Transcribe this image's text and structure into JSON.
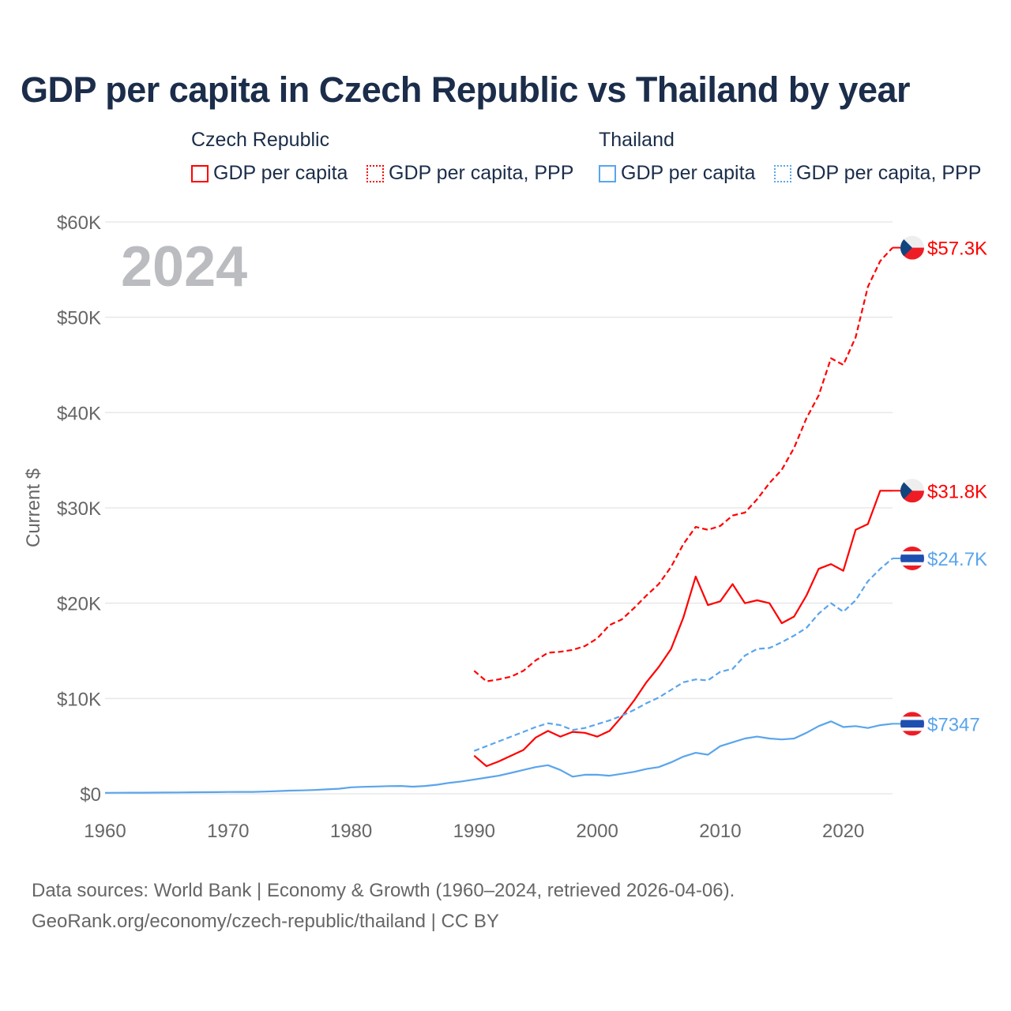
{
  "title": "GDP per capita in Czech Republic vs Thailand by year",
  "legend": {
    "groups": [
      {
        "country": "Czech Republic",
        "items": [
          "GDP per capita",
          "GDP per capita, PPP"
        ]
      },
      {
        "country": "Thailand",
        "items": [
          "GDP per capita",
          "GDP per capita, PPP"
        ]
      }
    ]
  },
  "year_watermark": "2024",
  "footer": {
    "line1": "Data sources: World Bank | Economy & Growth (1960–2024, retrieved 2026-04-06).",
    "line2": "GeoRank.org/economy/czech-republic/thailand | CC BY"
  },
  "colors": {
    "czech": "#ff0000",
    "thailand": "#5aa5ec",
    "grid": "#e8e8e8",
    "axis_text": "#666666"
  },
  "chart_data": {
    "type": "line",
    "title": "GDP per capita in Czech Republic vs Thailand by year",
    "xlabel": "",
    "ylabel": "Current $",
    "xlim": [
      1960,
      2024
    ],
    "ylim": [
      0,
      60000
    ],
    "x_ticks": [
      "1960",
      "1970",
      "1980",
      "1990",
      "2000",
      "2010",
      "2020"
    ],
    "y_ticks": [
      "$0",
      "$10K",
      "$20K",
      "$30K",
      "$40K",
      "$50K",
      "$60K"
    ],
    "grid": true,
    "legend_position": "top",
    "series": [
      {
        "name": "Czech Republic – GDP per capita",
        "country": "czech",
        "dashed": false,
        "start": 1990,
        "end_label": "$31.8K",
        "values": [
          4000,
          2900,
          3400,
          4000,
          4600,
          5900,
          6600,
          6000,
          6500,
          6400,
          6000,
          6600,
          8100,
          9800,
          11700,
          13300,
          15200,
          18500,
          22800,
          19800,
          20200,
          22000,
          20000,
          20300,
          20000,
          17900,
          18600,
          20800,
          23600,
          24100,
          23400,
          27700,
          28300,
          31800,
          31800
        ]
      },
      {
        "name": "Czech Republic – GDP per capita, PPP",
        "country": "czech",
        "dashed": true,
        "start": 1990,
        "end_label": "$57.3K",
        "values": [
          12900,
          11800,
          12000,
          12300,
          12900,
          14000,
          14800,
          14900,
          15100,
          15500,
          16300,
          17700,
          18300,
          19500,
          20800,
          22000,
          23800,
          26200,
          28000,
          27700,
          28100,
          29200,
          29500,
          30900,
          32600,
          34000,
          36300,
          39400,
          41800,
          45700,
          45000,
          47900,
          53200,
          55900,
          57300
        ]
      },
      {
        "name": "Thailand – GDP per capita",
        "country": "thailand",
        "dashed": false,
        "start": 1960,
        "end_label": "$7347",
        "values": [
          100,
          110,
          115,
          120,
          125,
          135,
          145,
          155,
          165,
          175,
          190,
          195,
          200,
          230,
          280,
          330,
          360,
          400,
          460,
          530,
          680,
          730,
          760,
          800,
          820,
          750,
          820,
          950,
          1150,
          1300,
          1500,
          1700,
          1900,
          2200,
          2500,
          2800,
          3000,
          2500,
          1800,
          2000,
          2000,
          1900,
          2100,
          2300,
          2600,
          2800,
          3300,
          3900,
          4300,
          4100,
          5000,
          5400,
          5800,
          6000,
          5800,
          5700,
          5800,
          6400,
          7100,
          7600,
          7000,
          7100,
          6900,
          7200,
          7347
        ]
      },
      {
        "name": "Thailand – GDP per capita, PPP",
        "country": "thailand",
        "dashed": true,
        "start": 1990,
        "end_label": "$24.7K",
        "values": [
          4500,
          5000,
          5500,
          6000,
          6500,
          7000,
          7400,
          7200,
          6700,
          6900,
          7300,
          7700,
          8200,
          8800,
          9500,
          10100,
          10900,
          11700,
          12000,
          11900,
          12800,
          13100,
          14500,
          15200,
          15300,
          15900,
          16600,
          17400,
          18900,
          20000,
          19100,
          20300,
          22300,
          23600,
          24700
        ]
      }
    ]
  }
}
